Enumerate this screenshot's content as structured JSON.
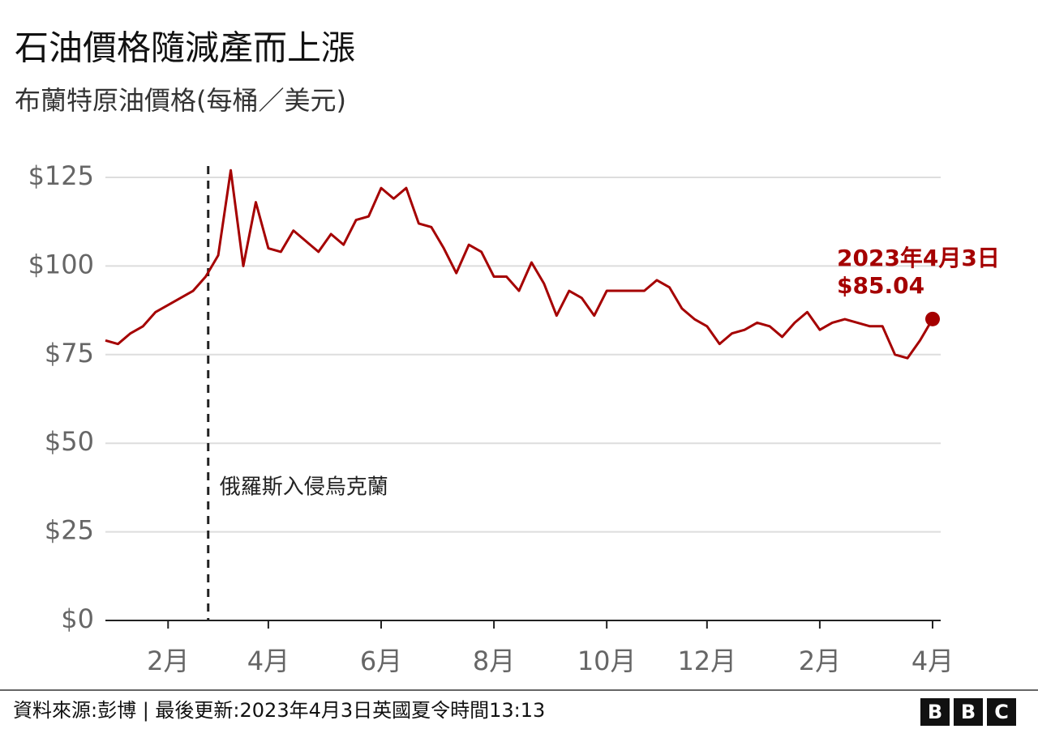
{
  "chart_data": {
    "type": "line",
    "title": "石油價格隨減產而上漲",
    "subtitle": "布蘭特原油價格(每桶／美元)",
    "categories": [
      null,
      null,
      null,
      null,
      null,
      "2月",
      null,
      null,
      null,
      null,
      null,
      null,
      null,
      "4月",
      null,
      null,
      null,
      null,
      null,
      null,
      null,
      null,
      "6月",
      null,
      null,
      null,
      null,
      null,
      null,
      null,
      null,
      "8月",
      null,
      null,
      null,
      null,
      null,
      null,
      null,
      null,
      "10月",
      null,
      null,
      null,
      null,
      null,
      null,
      null,
      "12月",
      null,
      null,
      null,
      null,
      null,
      null,
      null,
      null,
      "2月",
      null,
      null,
      null,
      null,
      null,
      null,
      null,
      null,
      "4月"
    ],
    "values": [
      79,
      78,
      81,
      83,
      87,
      89,
      91,
      93,
      97,
      103,
      127,
      100,
      118,
      105,
      104,
      110,
      107,
      104,
      109,
      106,
      113,
      114,
      122,
      119,
      122,
      112,
      111,
      105,
      98,
      106,
      104,
      97,
      97,
      93,
      101,
      95,
      86,
      93,
      91,
      86,
      93,
      93,
      93,
      93,
      96,
      94,
      88,
      85,
      83,
      78,
      81,
      82,
      84,
      83,
      80,
      84,
      87,
      82,
      84,
      85,
      84,
      83,
      83,
      75,
      74,
      79,
      85.04
    ],
    "value_labels": [
      null,
      null,
      null,
      null,
      null,
      null,
      null,
      null,
      null,
      null,
      null,
      null,
      null,
      null,
      null,
      null,
      null,
      null,
      null,
      null,
      null,
      null,
      null,
      null,
      null,
      null,
      null,
      null,
      null,
      null,
      null,
      null,
      null,
      null,
      null,
      null,
      null,
      null,
      null,
      null,
      null,
      null,
      null,
      null,
      null,
      null,
      null,
      null,
      null,
      null,
      null,
      null,
      null,
      null,
      null,
      null,
      null,
      null,
      null,
      null,
      null,
      null,
      null,
      null,
      null,
      null,
      "$85.04"
    ],
    "end_label": "2023年4月3日",
    "color": "#a50000",
    "ylim": [
      0,
      125
    ],
    "yticks": [
      {
        "value": 0,
        "label": "$0"
      },
      {
        "value": 25,
        "label": "$25"
      },
      {
        "value": 50,
        "label": "$50"
      },
      {
        "value": 75,
        "label": "$75"
      },
      {
        "value": 100,
        "label": "$100"
      },
      {
        "value": 125,
        "label": "$125"
      }
    ],
    "grid": true,
    "annotations": [
      {
        "text": "俄羅斯入侵烏克蘭",
        "x": 8.2
      }
    ],
    "source": "資料來源:彭博 | 最後更新:2023年4月3日英國夏令時間13:13",
    "logo": [
      "B",
      "B",
      "C"
    ]
  }
}
